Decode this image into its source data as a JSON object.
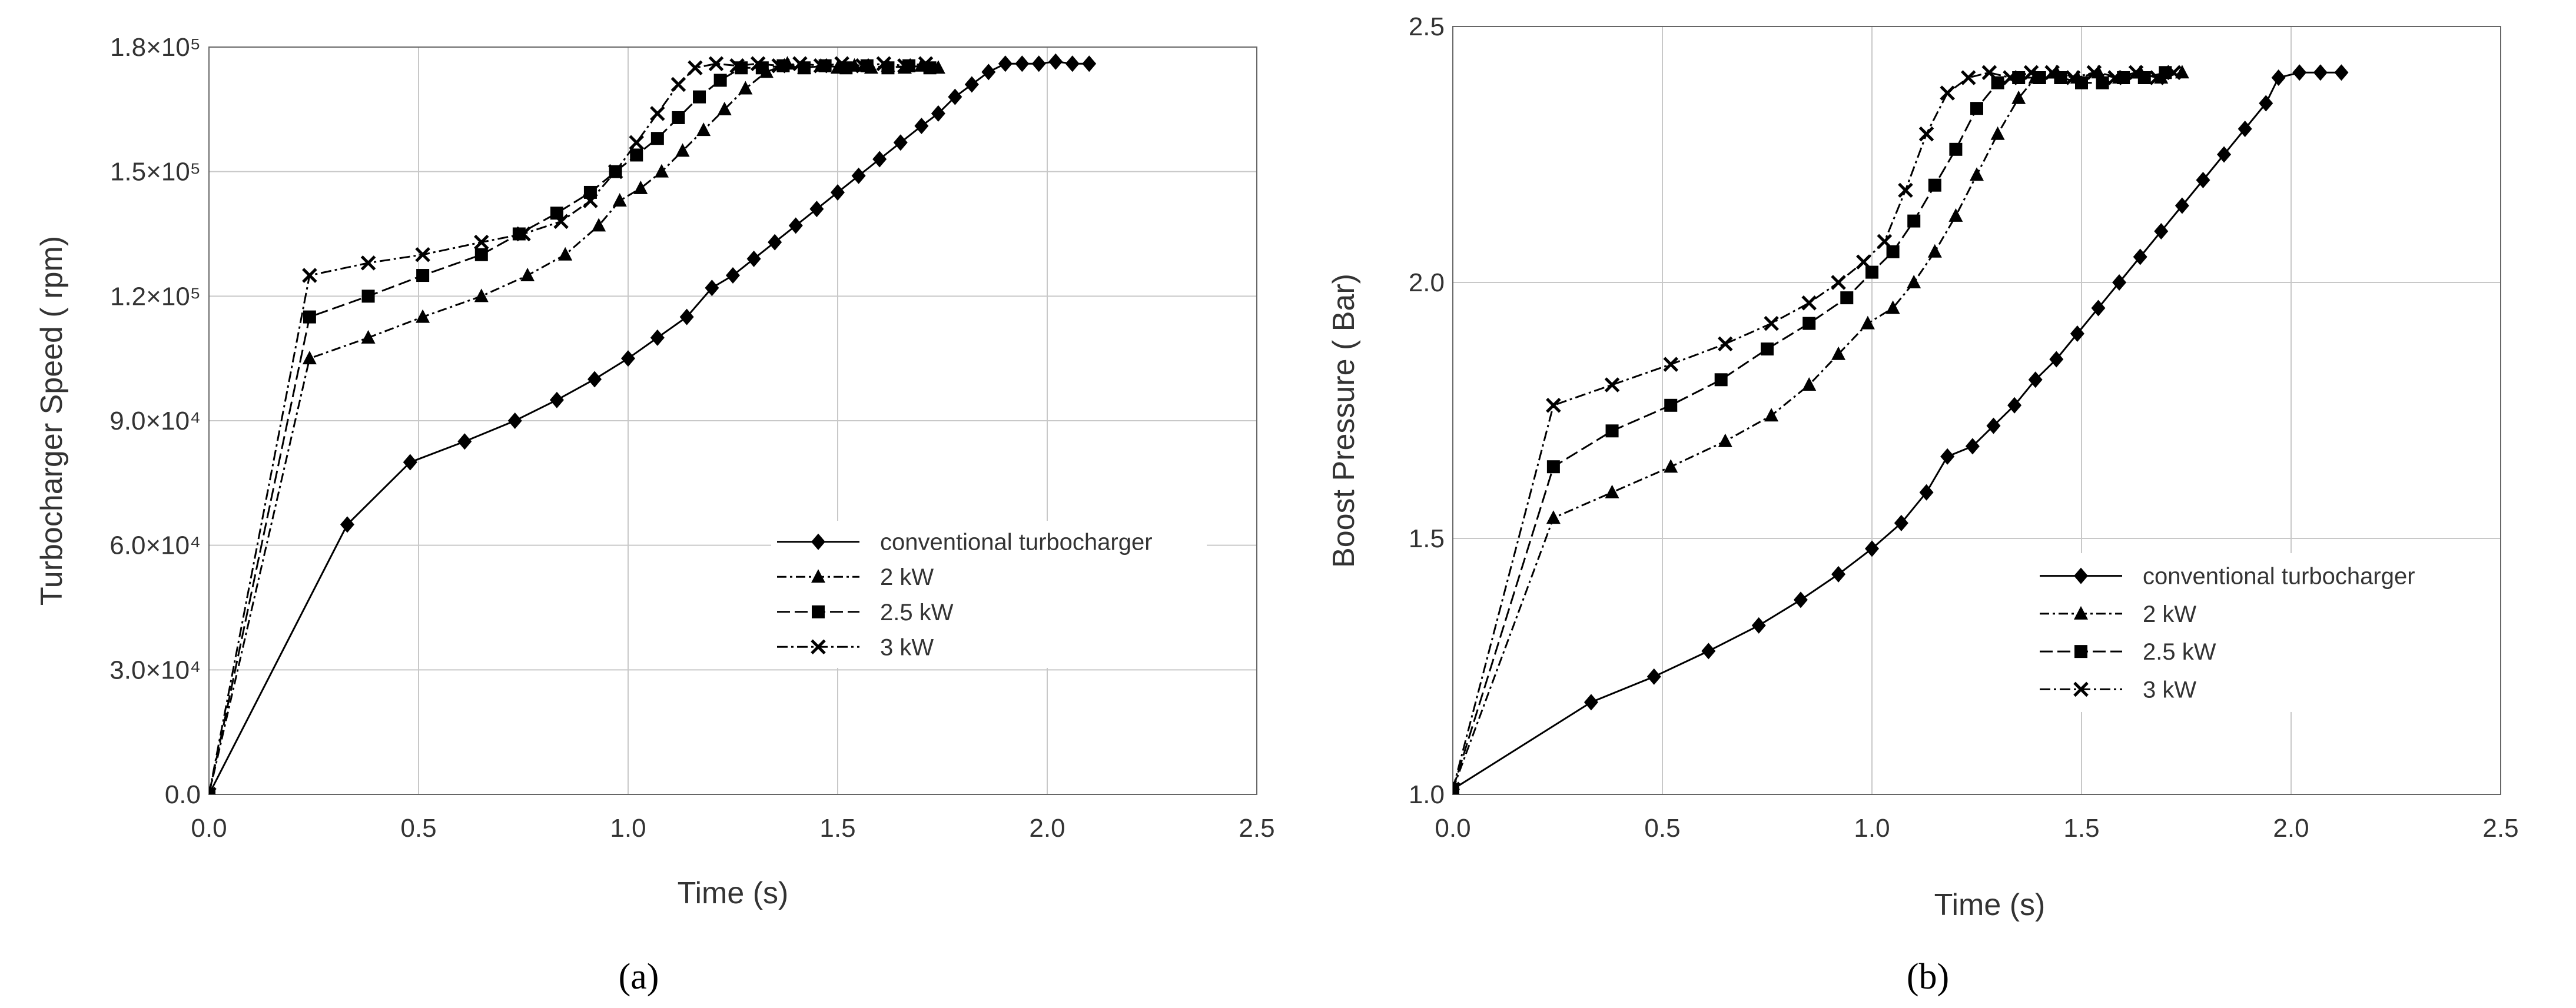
{
  "chart_data": [
    {
      "type": "line",
      "panel_label": "(a)",
      "xlabel": "Time (s)",
      "ylabel": "Turbocharger Speed ( rpm)",
      "xlim": [
        0,
        2.5
      ],
      "ylim": [
        0,
        180000
      ],
      "grid": true,
      "legend_position": "right-center",
      "x_ticks": [
        {
          "value": 0.0,
          "label": "0.0"
        },
        {
          "value": 0.5,
          "label": "0.5"
        },
        {
          "value": 1.0,
          "label": "1.0"
        },
        {
          "value": 1.5,
          "label": "1.5"
        },
        {
          "value": 2.0,
          "label": "2.0"
        },
        {
          "value": 2.5,
          "label": "2.5"
        }
      ],
      "y_ticks": [
        {
          "value": 0,
          "label": "0.0"
        },
        {
          "value": 30000,
          "label": "3.0×10⁴"
        },
        {
          "value": 60000,
          "label": "6.0×10⁴"
        },
        {
          "value": 90000,
          "label": "9.0×10⁴"
        },
        {
          "value": 120000,
          "label": "1.2×10⁵"
        },
        {
          "value": 150000,
          "label": "1.5×10⁵"
        },
        {
          "value": 180000,
          "label": "1.8×10⁵"
        }
      ],
      "series": [
        {
          "name": "conventional turbocharger",
          "marker": "diamond",
          "dash": "",
          "points": [
            [
              0,
              0
            ],
            [
              0.33,
              65000
            ],
            [
              0.48,
              80000
            ],
            [
              0.61,
              85000
            ],
            [
              0.73,
              90000
            ],
            [
              0.83,
              95000
            ],
            [
              0.92,
              100000
            ],
            [
              1.0,
              105000
            ],
            [
              1.07,
              110000
            ],
            [
              1.14,
              115000
            ],
            [
              1.2,
              122000
            ],
            [
              1.25,
              125000
            ],
            [
              1.3,
              129000
            ],
            [
              1.35,
              133000
            ],
            [
              1.4,
              137000
            ],
            [
              1.45,
              141000
            ],
            [
              1.5,
              145000
            ],
            [
              1.55,
              149000
            ],
            [
              1.6,
              153000
            ],
            [
              1.65,
              157000
            ],
            [
              1.7,
              161000
            ],
            [
              1.74,
              164000
            ],
            [
              1.78,
              168000
            ],
            [
              1.82,
              171000
            ],
            [
              1.86,
              174000
            ],
            [
              1.9,
              176000
            ],
            [
              1.94,
              176000
            ],
            [
              1.98,
              176000
            ],
            [
              2.02,
              176500
            ],
            [
              2.06,
              176000
            ],
            [
              2.1,
              176000
            ]
          ]
        },
        {
          "name": "2 kW",
          "marker": "triangle",
          "dash": "16,6,4,6",
          "points": [
            [
              0,
              0
            ],
            [
              0.24,
              105000
            ],
            [
              0.38,
              110000
            ],
            [
              0.51,
              115000
            ],
            [
              0.65,
              120000
            ],
            [
              0.76,
              125000
            ],
            [
              0.85,
              130000
            ],
            [
              0.93,
              137000
            ],
            [
              0.98,
              143000
            ],
            [
              1.03,
              146000
            ],
            [
              1.08,
              150000
            ],
            [
              1.13,
              155000
            ],
            [
              1.18,
              160000
            ],
            [
              1.23,
              165000
            ],
            [
              1.28,
              170000
            ],
            [
              1.33,
              174000
            ],
            [
              1.38,
              176000
            ],
            [
              1.42,
              175000
            ],
            [
              1.46,
              175500
            ],
            [
              1.5,
              175000
            ],
            [
              1.54,
              175500
            ],
            [
              1.58,
              175000
            ],
            [
              1.62,
              175500
            ],
            [
              1.66,
              175000
            ],
            [
              1.7,
              175500
            ],
            [
              1.74,
              175000
            ]
          ]
        },
        {
          "name": "2.5 kW",
          "marker": "square",
          "dash": "22,8",
          "points": [
            [
              0,
              0
            ],
            [
              0.24,
              115000
            ],
            [
              0.38,
              120000
            ],
            [
              0.51,
              125000
            ],
            [
              0.65,
              130000
            ],
            [
              0.74,
              135000
            ],
            [
              0.83,
              140000
            ],
            [
              0.91,
              145000
            ],
            [
              0.97,
              150000
            ],
            [
              1.02,
              154000
            ],
            [
              1.07,
              158000
            ],
            [
              1.12,
              163000
            ],
            [
              1.17,
              168000
            ],
            [
              1.22,
              172000
            ],
            [
              1.27,
              175000
            ],
            [
              1.32,
              175000
            ],
            [
              1.37,
              175500
            ],
            [
              1.42,
              175000
            ],
            [
              1.47,
              175500
            ],
            [
              1.52,
              175000
            ],
            [
              1.57,
              175500
            ],
            [
              1.62,
              175000
            ],
            [
              1.67,
              175500
            ],
            [
              1.72,
              175000
            ]
          ]
        },
        {
          "name": "3 kW",
          "marker": "x",
          "dash": "18,6,4,6",
          "points": [
            [
              0,
              0
            ],
            [
              0.24,
              125000
            ],
            [
              0.38,
              128000
            ],
            [
              0.51,
              130000
            ],
            [
              0.65,
              133000
            ],
            [
              0.75,
              135000
            ],
            [
              0.84,
              138000
            ],
            [
              0.91,
              143000
            ],
            [
              0.97,
              150000
            ],
            [
              1.02,
              157000
            ],
            [
              1.07,
              164000
            ],
            [
              1.12,
              171000
            ],
            [
              1.16,
              175000
            ],
            [
              1.21,
              176000
            ],
            [
              1.26,
              175500
            ],
            [
              1.31,
              176000
            ],
            [
              1.36,
              175500
            ],
            [
              1.41,
              176000
            ],
            [
              1.46,
              175500
            ],
            [
              1.51,
              176000
            ],
            [
              1.56,
              175500
            ],
            [
              1.61,
              176000
            ],
            [
              1.66,
              175500
            ],
            [
              1.71,
              176000
            ]
          ]
        }
      ]
    },
    {
      "type": "line",
      "panel_label": "(b)",
      "xlabel": "Time (s)",
      "ylabel": "Boost Pressure ( Bar)",
      "xlim": [
        0,
        2.5
      ],
      "ylim": [
        1.0,
        2.5
      ],
      "grid": true,
      "legend_position": "right-center",
      "x_ticks": [
        {
          "value": 0.0,
          "label": "0.0"
        },
        {
          "value": 0.5,
          "label": "0.5"
        },
        {
          "value": 1.0,
          "label": "1.0"
        },
        {
          "value": 1.5,
          "label": "1.5"
        },
        {
          "value": 2.0,
          "label": "2.0"
        },
        {
          "value": 2.5,
          "label": "2.5"
        }
      ],
      "y_ticks": [
        {
          "value": 1.0,
          "label": "1.0"
        },
        {
          "value": 1.5,
          "label": "1.5"
        },
        {
          "value": 2.0,
          "label": "2.0"
        },
        {
          "value": 2.5,
          "label": "2.5"
        }
      ],
      "series": [
        {
          "name": "conventional turbocharger",
          "marker": "diamond",
          "dash": "",
          "points": [
            [
              0,
              1.01
            ],
            [
              0.33,
              1.18
            ],
            [
              0.48,
              1.23
            ],
            [
              0.61,
              1.28
            ],
            [
              0.73,
              1.33
            ],
            [
              0.83,
              1.38
            ],
            [
              0.92,
              1.43
            ],
            [
              1.0,
              1.48
            ],
            [
              1.07,
              1.53
            ],
            [
              1.13,
              1.59
            ],
            [
              1.18,
              1.66
            ],
            [
              1.24,
              1.68
            ],
            [
              1.29,
              1.72
            ],
            [
              1.34,
              1.76
            ],
            [
              1.39,
              1.81
            ],
            [
              1.44,
              1.85
            ],
            [
              1.49,
              1.9
            ],
            [
              1.54,
              1.95
            ],
            [
              1.59,
              2.0
            ],
            [
              1.64,
              2.05
            ],
            [
              1.69,
              2.1
            ],
            [
              1.74,
              2.15
            ],
            [
              1.79,
              2.2
            ],
            [
              1.84,
              2.25
            ],
            [
              1.89,
              2.3
            ],
            [
              1.94,
              2.35
            ],
            [
              1.97,
              2.4
            ],
            [
              2.02,
              2.41
            ],
            [
              2.07,
              2.41
            ],
            [
              2.12,
              2.41
            ]
          ]
        },
        {
          "name": "2 kW",
          "marker": "triangle",
          "dash": "16,6,4,6",
          "points": [
            [
              0,
              1.01
            ],
            [
              0.24,
              1.54
            ],
            [
              0.38,
              1.59
            ],
            [
              0.52,
              1.64
            ],
            [
              0.65,
              1.69
            ],
            [
              0.76,
              1.74
            ],
            [
              0.85,
              1.8
            ],
            [
              0.92,
              1.86
            ],
            [
              0.99,
              1.92
            ],
            [
              1.05,
              1.95
            ],
            [
              1.1,
              2.0
            ],
            [
              1.15,
              2.06
            ],
            [
              1.2,
              2.13
            ],
            [
              1.25,
              2.21
            ],
            [
              1.3,
              2.29
            ],
            [
              1.35,
              2.36
            ],
            [
              1.39,
              2.4
            ],
            [
              1.44,
              2.41
            ],
            [
              1.49,
              2.4
            ],
            [
              1.54,
              2.41
            ],
            [
              1.59,
              2.4
            ],
            [
              1.64,
              2.41
            ],
            [
              1.69,
              2.4
            ],
            [
              1.74,
              2.41
            ]
          ]
        },
        {
          "name": "2.5 kW",
          "marker": "square",
          "dash": "22,8",
          "points": [
            [
              0,
              1.01
            ],
            [
              0.24,
              1.64
            ],
            [
              0.38,
              1.71
            ],
            [
              0.52,
              1.76
            ],
            [
              0.64,
              1.81
            ],
            [
              0.75,
              1.87
            ],
            [
              0.85,
              1.92
            ],
            [
              0.94,
              1.97
            ],
            [
              1.0,
              2.02
            ],
            [
              1.05,
              2.06
            ],
            [
              1.1,
              2.12
            ],
            [
              1.15,
              2.19
            ],
            [
              1.2,
              2.26
            ],
            [
              1.25,
              2.34
            ],
            [
              1.3,
              2.39
            ],
            [
              1.35,
              2.4
            ],
            [
              1.4,
              2.4
            ],
            [
              1.45,
              2.4
            ],
            [
              1.5,
              2.39
            ],
            [
              1.55,
              2.39
            ],
            [
              1.6,
              2.4
            ],
            [
              1.65,
              2.4
            ],
            [
              1.7,
              2.41
            ]
          ]
        },
        {
          "name": "3 kW",
          "marker": "x",
          "dash": "18,6,4,6",
          "points": [
            [
              0,
              1.01
            ],
            [
              0.24,
              1.76
            ],
            [
              0.38,
              1.8
            ],
            [
              0.52,
              1.84
            ],
            [
              0.65,
              1.88
            ],
            [
              0.76,
              1.92
            ],
            [
              0.85,
              1.96
            ],
            [
              0.92,
              2.0
            ],
            [
              0.98,
              2.04
            ],
            [
              1.03,
              2.08
            ],
            [
              1.08,
              2.18
            ],
            [
              1.13,
              2.29
            ],
            [
              1.18,
              2.37
            ],
            [
              1.23,
              2.4
            ],
            [
              1.28,
              2.41
            ],
            [
              1.33,
              2.4
            ],
            [
              1.38,
              2.41
            ],
            [
              1.43,
              2.41
            ],
            [
              1.48,
              2.4
            ],
            [
              1.53,
              2.41
            ],
            [
              1.58,
              2.4
            ],
            [
              1.63,
              2.41
            ],
            [
              1.68,
              2.4
            ],
            [
              1.72,
              2.41
            ]
          ]
        }
      ]
    }
  ]
}
